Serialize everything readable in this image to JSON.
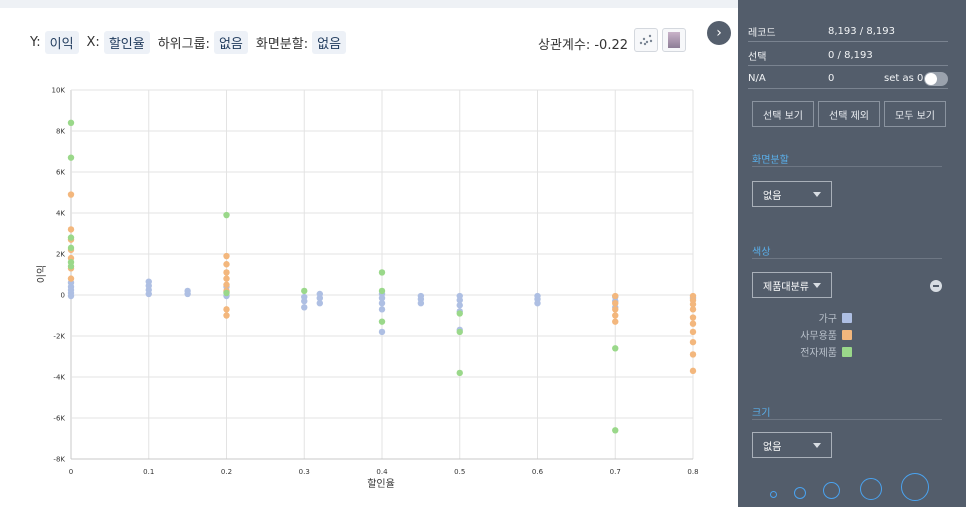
{
  "header": {
    "y_label": "Y:",
    "y_value": "이익",
    "x_label": "X:",
    "x_value": "할인율",
    "subgroup_label": "하위그룹:",
    "subgroup_value": "없음",
    "split_label": "화면분할:",
    "split_value": "없음",
    "correlation": "상관계수: -0.22"
  },
  "icons": {
    "scatter": "scatter-plot-icon",
    "gradient": "gradient-swatch-icon",
    "collapse": "chevron-right-icon"
  },
  "colors": {
    "furniture": "#aebfe3",
    "office": "#f3b77d",
    "tech": "#9ad88a",
    "panel": "#535d6b",
    "accent": "#5aaee8"
  },
  "side": {
    "records_label": "레코드",
    "records_value": "8,193 / 8,193",
    "selected_label": "선택",
    "selected_value": "0 / 8,193",
    "na_label": "N/A",
    "na_value": "0",
    "set_as_zero": "set as 0",
    "btn_view_selected": "선택 보기",
    "btn_exclude_selected": "선택 제외",
    "btn_view_all": "모두 보기",
    "split_title": "화면분할",
    "split_value": "없음",
    "color_title": "색상",
    "color_value": "제품대분류",
    "legend": [
      {
        "label": "가구"
      },
      {
        "label": "사무용품"
      },
      {
        "label": "전자제품"
      }
    ],
    "size_title": "크기",
    "size_value": "없음"
  },
  "chart_data": {
    "type": "scatter",
    "xlabel": "할인율",
    "ylabel": "이익",
    "xlim": [
      0,
      0.8
    ],
    "ylim": [
      -8000,
      10000
    ],
    "x_ticks": [
      "0",
      "0.1",
      "0.2",
      "0.3",
      "0.4",
      "0.5",
      "0.6",
      "0.7",
      "0.8"
    ],
    "y_ticks": [
      "-8K",
      "-6K",
      "-4K",
      "-2K",
      "0",
      "2K",
      "4K",
      "6K",
      "8K",
      "10K"
    ],
    "grid": true,
    "series": [
      {
        "name": "가구",
        "points": [
          [
            0,
            -50
          ],
          [
            0,
            100
          ],
          [
            0,
            250
          ],
          [
            0,
            400
          ],
          [
            0,
            600
          ],
          [
            0.1,
            50
          ],
          [
            0.1,
            250
          ],
          [
            0.1,
            450
          ],
          [
            0.1,
            650
          ],
          [
            0.15,
            50
          ],
          [
            0.15,
            200
          ],
          [
            0.2,
            -50
          ],
          [
            0.2,
            150
          ],
          [
            0.2,
            400
          ],
          [
            0.3,
            -600
          ],
          [
            0.3,
            -300
          ],
          [
            0.3,
            -100
          ],
          [
            0.32,
            -400
          ],
          [
            0.32,
            -150
          ],
          [
            0.32,
            50
          ],
          [
            0.4,
            -1800
          ],
          [
            0.4,
            -700
          ],
          [
            0.4,
            -400
          ],
          [
            0.4,
            -150
          ],
          [
            0.4,
            50
          ],
          [
            0.45,
            -400
          ],
          [
            0.45,
            -200
          ],
          [
            0.45,
            -50
          ],
          [
            0.5,
            -1700
          ],
          [
            0.5,
            -800
          ],
          [
            0.5,
            -500
          ],
          [
            0.5,
            -250
          ],
          [
            0.5,
            -50
          ],
          [
            0.6,
            -400
          ],
          [
            0.6,
            -200
          ],
          [
            0.6,
            -50
          ],
          [
            0.7,
            -600
          ],
          [
            0.7,
            -300
          ],
          [
            0.7,
            -100
          ],
          [
            0.8,
            -150
          ]
        ]
      },
      {
        "name": "사무용품",
        "points": [
          [
            0,
            800
          ],
          [
            0,
            1300
          ],
          [
            0,
            1800
          ],
          [
            0,
            2200
          ],
          [
            0,
            2700
          ],
          [
            0,
            3200
          ],
          [
            0,
            4900
          ],
          [
            0.2,
            -1000
          ],
          [
            0.2,
            -700
          ],
          [
            0.2,
            200
          ],
          [
            0.2,
            500
          ],
          [
            0.2,
            800
          ],
          [
            0.2,
            1100
          ],
          [
            0.2,
            1500
          ],
          [
            0.2,
            1900
          ],
          [
            0.7,
            -1300
          ],
          [
            0.7,
            -1000
          ],
          [
            0.7,
            -700
          ],
          [
            0.7,
            -400
          ],
          [
            0.7,
            -50
          ],
          [
            0.8,
            -3700
          ],
          [
            0.8,
            -2900
          ],
          [
            0.8,
            -2300
          ],
          [
            0.8,
            -1800
          ],
          [
            0.8,
            -1400
          ],
          [
            0.8,
            -1100
          ],
          [
            0.8,
            -700
          ],
          [
            0.8,
            -450
          ],
          [
            0.8,
            -250
          ],
          [
            0.8,
            -50
          ]
        ]
      },
      {
        "name": "전자제품",
        "points": [
          [
            0,
            8400
          ],
          [
            0,
            6700
          ],
          [
            0,
            2800
          ],
          [
            0,
            2300
          ],
          [
            0,
            1600
          ],
          [
            0,
            1400
          ],
          [
            0.2,
            3900
          ],
          [
            0.2,
            100
          ],
          [
            0.3,
            200
          ],
          [
            0.4,
            1100
          ],
          [
            0.4,
            200
          ],
          [
            0.4,
            -1300
          ],
          [
            0.5,
            -3800
          ],
          [
            0.5,
            -1800
          ],
          [
            0.5,
            -900
          ],
          [
            0.7,
            -2600
          ],
          [
            0.7,
            -6600
          ]
        ]
      }
    ]
  }
}
